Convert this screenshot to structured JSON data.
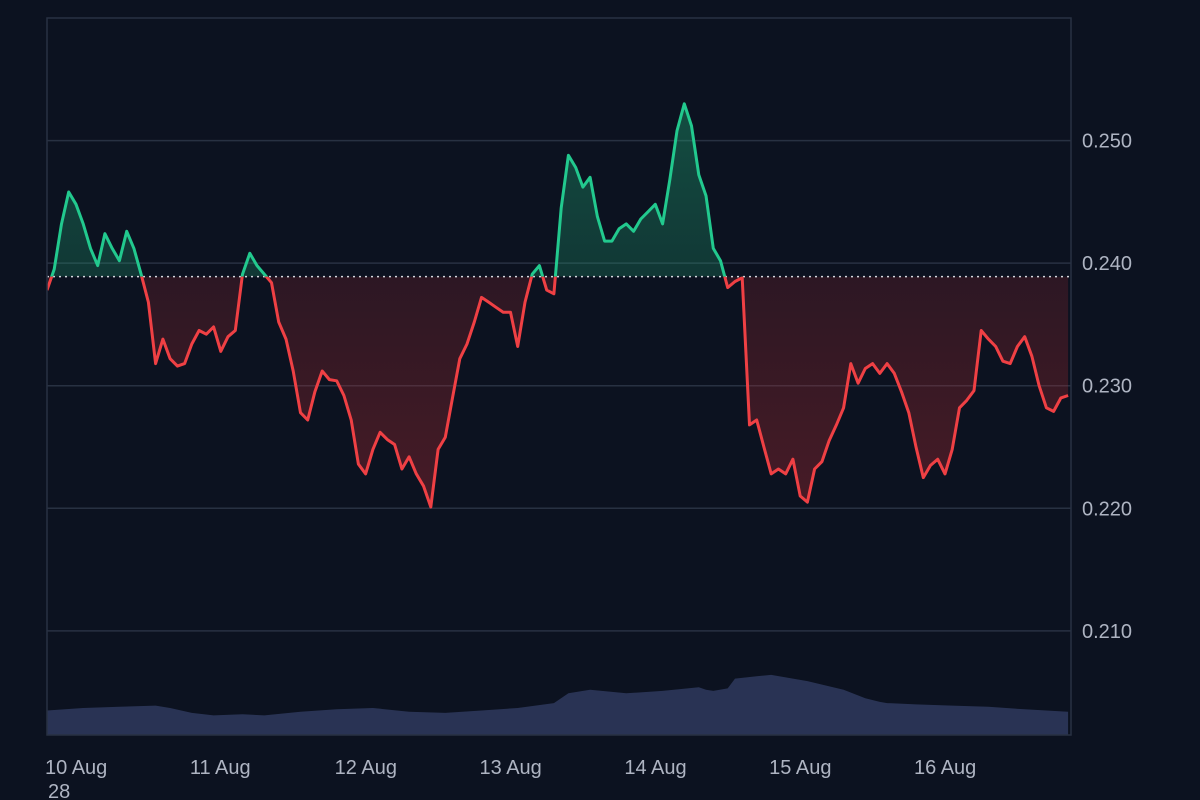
{
  "chart_data": {
    "type": "area",
    "baseline": 0.2389,
    "ylim": [
      0.2015,
      0.26
    ],
    "y_ticks": [
      "0.210",
      "0.220",
      "0.230",
      "0.240",
      "0.250"
    ],
    "y_tick_values": [
      0.21,
      0.22,
      0.23,
      0.24,
      0.25
    ],
    "x_ticks": [
      "10 Aug",
      "11 Aug",
      "12 Aug",
      "13 Aug",
      "14 Aug",
      "15 Aug",
      "16 Aug"
    ],
    "x_tick_days": [
      0,
      1,
      2,
      3,
      4,
      5,
      6
    ],
    "x_range_days": [
      0,
      7.07
    ],
    "footnote": "28",
    "grid": true,
    "colors": {
      "up": "#22c98e",
      "down": "#ef4044",
      "volume": "#2b3657",
      "grid": "#283142",
      "baseline": "#d4d7de"
    },
    "series": [
      {
        "x_days": [
          0.0,
          0.05,
          0.1,
          0.15,
          0.2,
          0.25,
          0.3,
          0.35,
          0.4,
          0.45,
          0.5,
          0.55,
          0.6,
          0.65,
          0.7,
          0.75,
          0.8,
          0.85,
          0.9,
          0.95,
          1.0,
          1.05,
          1.1,
          1.15,
          1.2,
          1.25,
          1.3,
          1.35,
          1.4,
          1.45,
          1.5,
          1.55,
          1.6,
          1.65,
          1.7,
          1.75,
          1.8,
          1.85,
          1.9,
          1.95,
          2.0,
          2.05,
          2.1,
          2.15,
          2.2,
          2.25,
          2.3,
          2.35,
          2.4,
          2.45,
          2.5,
          2.55,
          2.6,
          2.65,
          2.7,
          2.75,
          2.8,
          2.85,
          2.9,
          2.95,
          3.0,
          3.05,
          3.1,
          3.15,
          3.2,
          3.25,
          3.3,
          3.35,
          3.4,
          3.45,
          3.5,
          3.55,
          3.6,
          3.65,
          3.7,
          3.75,
          3.8,
          3.85,
          3.9,
          3.95,
          4.0,
          4.05,
          4.1,
          4.15,
          4.2,
          4.25,
          4.3,
          4.35,
          4.4,
          4.45,
          4.5,
          4.55,
          4.6,
          4.65,
          4.7,
          4.75,
          4.8,
          4.85,
          4.9,
          4.95,
          5.0,
          5.05,
          5.1,
          5.15,
          5.2,
          5.25,
          5.3,
          5.35,
          5.4,
          5.45,
          5.5,
          5.55,
          5.6,
          5.65,
          5.7,
          5.75,
          5.8,
          5.85,
          5.9,
          5.95,
          6.0,
          6.05,
          6.1,
          6.15,
          6.2,
          6.25,
          6.3,
          6.35,
          6.4,
          6.45,
          6.5,
          6.55,
          6.6,
          6.65,
          6.7,
          6.75,
          6.8,
          6.85,
          6.9,
          6.95,
          7.0,
          7.05
        ],
        "y": [
          0.2378,
          0.2395,
          0.2432,
          0.2458,
          0.2448,
          0.2432,
          0.2412,
          0.2398,
          0.2424,
          0.2412,
          0.2402,
          0.2426,
          0.2412,
          0.2391,
          0.2368,
          0.2318,
          0.2338,
          0.2322,
          0.2316,
          0.2318,
          0.2334,
          0.2345,
          0.2342,
          0.2348,
          0.2328,
          0.234,
          0.2345,
          0.2391,
          0.2408,
          0.2398,
          0.2391,
          0.2384,
          0.2352,
          0.2338,
          0.2312,
          0.2278,
          0.2272,
          0.2295,
          0.2312,
          0.2305,
          0.2304,
          0.2292,
          0.2272,
          0.2236,
          0.2228,
          0.2248,
          0.2262,
          0.2256,
          0.2252,
          0.2232,
          0.2242,
          0.2228,
          0.2218,
          0.2201,
          0.2248,
          0.2258,
          0.229,
          0.2322,
          0.2334,
          0.2352,
          0.2372,
          0.2368,
          0.2364,
          0.236,
          0.236,
          0.2332,
          0.2368,
          0.2391,
          0.2398,
          0.2378,
          0.2375,
          0.2445,
          0.2488,
          0.2478,
          0.2462,
          0.247,
          0.2438,
          0.2418,
          0.2418,
          0.2428,
          0.2432,
          0.2426,
          0.2436,
          0.2442,
          0.2448,
          0.2432,
          0.2468,
          0.2508,
          0.253,
          0.2512,
          0.2472,
          0.2455,
          0.2412,
          0.2402,
          0.238,
          0.2385,
          0.2388,
          0.2268,
          0.2272,
          0.225,
          0.2228,
          0.2232,
          0.2228,
          0.224,
          0.221,
          0.2205,
          0.2232,
          0.2238,
          0.2255,
          0.2268,
          0.2282,
          0.2318,
          0.2302,
          0.2314,
          0.2318,
          0.231,
          0.2318,
          0.231,
          0.2295,
          0.2278,
          0.225,
          0.2225,
          0.2235,
          0.224,
          0.2228,
          0.2248,
          0.2282,
          0.2288,
          0.2296,
          0.2345,
          0.2338,
          0.2332,
          0.232,
          0.2318,
          0.2332,
          0.234,
          0.2324,
          0.23,
          0.2282,
          0.2279,
          0.229,
          0.2292
        ]
      },
      {
        "name": "volume",
        "x_days": [
          0.0,
          0.25,
          0.5,
          0.75,
          0.85,
          1.0,
          1.15,
          1.35,
          1.5,
          1.75,
          2.0,
          2.25,
          2.5,
          2.75,
          3.0,
          3.25,
          3.5,
          3.6,
          3.75,
          4.0,
          4.25,
          4.5,
          4.55,
          4.6,
          4.7,
          4.75,
          4.9,
          5.0,
          5.25,
          5.5,
          5.65,
          5.75,
          5.8,
          6.0,
          6.25,
          6.5,
          6.75,
          7.05
        ],
        "y": [
          0.2035,
          0.2037,
          0.2038,
          0.2039,
          0.2037,
          0.2033,
          0.2031,
          0.2032,
          0.2031,
          0.2034,
          0.2036,
          0.2037,
          0.2034,
          0.2033,
          0.2035,
          0.2037,
          0.2041,
          0.2049,
          0.2052,
          0.2049,
          0.2051,
          0.2054,
          0.2052,
          0.2051,
          0.2053,
          0.2061,
          0.2063,
          0.2064,
          0.2059,
          0.2052,
          0.2045,
          0.2042,
          0.2041,
          0.204,
          0.2039,
          0.2038,
          0.2036,
          0.2034
        ]
      }
    ]
  }
}
